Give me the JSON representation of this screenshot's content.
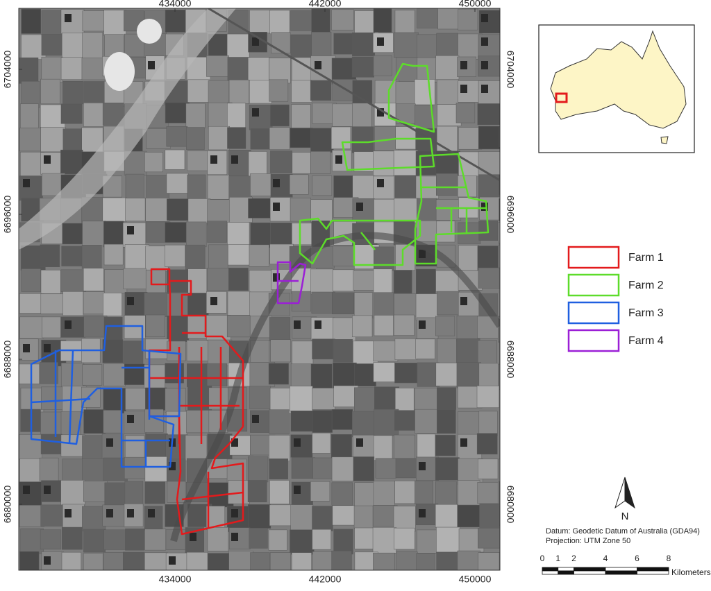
{
  "map": {
    "x_ticks": [
      434000,
      442000,
      450000
    ],
    "y_ticks": [
      6704000,
      6696000,
      6688000,
      6680000
    ],
    "legend": [
      {
        "label": "Farm 1",
        "color": "#e31a1c"
      },
      {
        "label": "Farm 2",
        "color": "#5ddc2a"
      },
      {
        "label": "Farm 3",
        "color": "#1f5fe0"
      },
      {
        "label": "Farm 4",
        "color": "#9b1fd6"
      }
    ],
    "north": "N",
    "datum": "Datum: Geodetic Datum of Australia (GDA94)",
    "projection": "Projection: UTM Zone 50",
    "scale": {
      "ticks": [
        0,
        1,
        2,
        4,
        6,
        8
      ],
      "unit": "Kilometers"
    }
  }
}
